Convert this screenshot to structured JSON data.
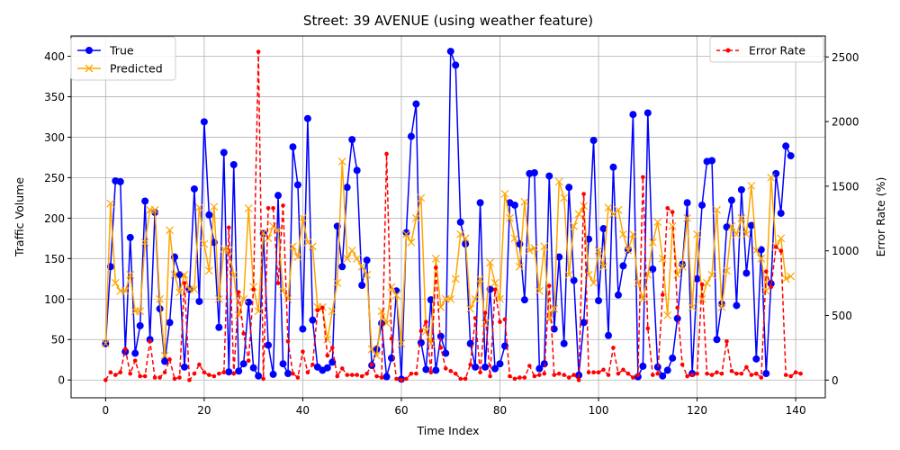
{
  "chart_data": {
    "type": "line",
    "title": "Street: 39 AVENUE (using weather feature)",
    "xlabel": "Time Index",
    "ylabel_left": "Traffic Volume",
    "ylabel_right": "Error Rate (%)",
    "xlim": [
      -7,
      146
    ],
    "ylim_left": [
      -22,
      425
    ],
    "ylim_right": [
      -137,
      2662
    ],
    "x_ticks": [
      0,
      20,
      40,
      60,
      80,
      100,
      120,
      140
    ],
    "y_ticks_left": [
      0,
      50,
      100,
      150,
      200,
      250,
      300,
      350,
      400
    ],
    "y_ticks_right": [
      0,
      500,
      1000,
      1500,
      2000,
      2500
    ],
    "grid": true,
    "legend_left": "top-left",
    "legend_right": "top-right",
    "series": [
      {
        "name": "True",
        "axis": "left",
        "color": "#0000ff",
        "marker": "circle",
        "values": [
          45,
          140,
          246,
          245,
          35,
          176,
          33,
          67,
          221,
          50,
          207,
          88,
          23,
          71,
          152,
          130,
          16,
          112,
          236,
          97,
          319,
          204,
          170,
          65,
          281,
          10,
          266,
          11,
          20,
          96,
          15,
          5,
          181,
          43,
          7,
          228,
          20,
          8,
          288,
          241,
          63,
          323,
          74,
          16,
          12,
          15,
          22,
          190,
          140,
          238,
          297,
          259,
          117,
          148,
          18,
          38,
          70,
          4,
          27,
          110,
          1,
          182,
          301,
          341,
          46,
          13,
          99,
          12,
          54,
          33,
          406,
          389,
          195,
          168,
          45,
          16,
          219,
          16,
          112,
          14,
          20,
          42,
          219,
          216,
          168,
          99,
          255,
          256,
          14,
          20,
          252,
          63,
          152,
          45,
          238,
          123,
          6,
          71,
          174,
          296,
          98,
          187,
          55,
          263,
          105,
          141,
          161,
          328,
          4,
          17,
          330,
          137,
          16,
          5,
          12,
          27,
          76,
          143,
          219,
          8,
          125,
          216,
          270,
          271,
          50,
          94,
          189,
          222,
          92,
          235,
          132,
          191,
          26,
          161,
          8,
          119,
          255,
          206,
          289,
          277
        ]
      },
      {
        "name": "Predicted",
        "axis": "left",
        "color": "#ffa500",
        "marker": "x",
        "values": [
          45,
          218,
          120,
          110,
          110,
          130,
          85,
          85,
          170,
          210,
          210,
          100,
          30,
          185,
          130,
          108,
          130,
          112,
          112,
          213,
          168,
          135,
          214,
          100,
          162,
          160,
          130,
          80,
          100,
          212,
          115,
          85,
          182,
          175,
          190,
          185,
          110,
          100,
          165,
          152,
          200,
          170,
          165,
          90,
          90,
          50,
          85,
          120,
          270,
          150,
          160,
          150,
          140,
          130,
          38,
          30,
          85,
          70,
          115,
          105,
          45,
          180,
          170,
          200,
          225,
          60,
          45,
          150,
          90,
          100,
          100,
          125,
          180,
          175,
          88,
          100,
          125,
          70,
          145,
          120,
          100,
          230,
          200,
          175,
          140,
          220,
          160,
          163,
          110,
          165,
          75,
          88,
          245,
          225,
          130,
          190,
          205,
          215,
          130,
          120,
          160,
          140,
          213,
          205,
          210,
          180,
          160,
          180,
          120,
          100,
          130,
          170,
          195,
          150,
          80,
          190,
          130,
          140,
          200,
          90,
          180,
          100,
          120,
          130,
          210,
          90,
          135,
          190,
          180,
          200,
          180,
          240,
          160,
          150,
          110,
          250,
          165,
          175,
          125,
          128
        ]
      },
      {
        "name": "Error Rate",
        "axis": "right",
        "color": "#ff0000",
        "marker": "dot",
        "dashed": true,
        "values": [
          0,
          60,
          40,
          60,
          240,
          50,
          150,
          30,
          30,
          300,
          20,
          20,
          60,
          160,
          10,
          20,
          750,
          0,
          50,
          120,
          60,
          40,
          30,
          50,
          60,
          1180,
          50,
          680,
          360,
          150,
          700,
          2540,
          10,
          1330,
          1330,
          750,
          1350,
          300,
          50,
          20,
          220,
          60,
          120,
          540,
          560,
          190,
          250,
          30,
          90,
          40,
          40,
          40,
          30,
          50,
          120,
          30,
          20,
          1750,
          320,
          10,
          0,
          10,
          50,
          50,
          380,
          450,
          60,
          870,
          250,
          90,
          70,
          50,
          10,
          10,
          120,
          480,
          60,
          520,
          30,
          700,
          450,
          470,
          30,
          10,
          20,
          20,
          110,
          30,
          40,
          50,
          730,
          40,
          50,
          40,
          20,
          40,
          0,
          1440,
          60,
          60,
          60,
          80,
          40,
          250,
          50,
          80,
          50,
          20,
          40,
          1570,
          400,
          40,
          50,
          660,
          1330,
          1300,
          560,
          120,
          30,
          40,
          50,
          740,
          50,
          40,
          60,
          50,
          300,
          70,
          50,
          50,
          100,
          40,
          50,
          20,
          840,
          720,
          1030,
          1000,
          40,
          30,
          60,
          50
        ]
      }
    ]
  }
}
